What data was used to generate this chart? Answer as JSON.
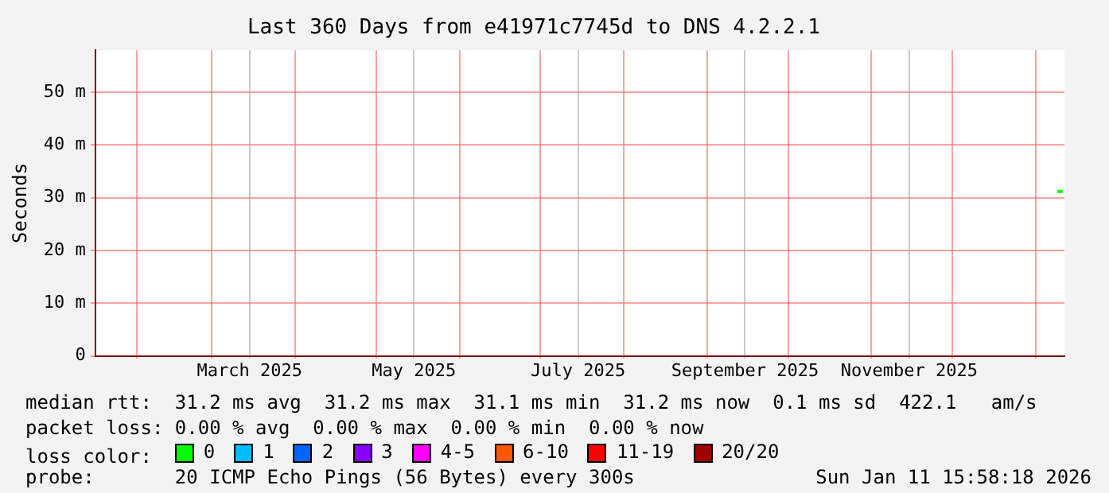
{
  "chart_data": {
    "type": "line",
    "title": "Last 360 Days from e41971c7745d to DNS 4.2.2.1",
    "ylabel": "Seconds",
    "xlim": [
      "2025-01-16T16:00",
      "2026-01-11T16:00"
    ],
    "xticks": [
      {
        "value": "2025-02-01",
        "label": null
      },
      {
        "value": "2025-03-01",
        "label": null
      },
      {
        "value": "2025-03-15",
        "label": "March 2025"
      },
      {
        "value": "2025-04-01",
        "label": null
      },
      {
        "value": "2025-05-01",
        "label": null
      },
      {
        "value": "2025-05-15",
        "label": "May 2025"
      },
      {
        "value": "2025-06-01",
        "label": null
      },
      {
        "value": "2025-07-01",
        "label": null
      },
      {
        "value": "2025-07-15",
        "label": "July 2025"
      },
      {
        "value": "2025-08-01",
        "label": null
      },
      {
        "value": "2025-09-01",
        "label": null
      },
      {
        "value": "2025-09-15",
        "label": "September 2025"
      },
      {
        "value": "2025-10-01",
        "label": null
      },
      {
        "value": "2025-11-01",
        "label": null
      },
      {
        "value": "2025-11-15",
        "label": "November 2025"
      },
      {
        "value": "2025-12-01",
        "label": null
      },
      {
        "value": "2026-01-01",
        "label": null
      }
    ],
    "ylim": [
      0,
      58
    ],
    "yticks": [
      0,
      {
        "value": 10,
        "label": "10 m"
      },
      {
        "value": 20,
        "label": "20 m"
      },
      {
        "value": 30,
        "label": "30 m"
      },
      {
        "value": 40,
        "label": "40 m"
      },
      {
        "value": 50,
        "label": "50 m"
      }
    ],
    "grid": true,
    "legend": "bottom",
    "marker": "none",
    "series": [
      {
        "name": "0",
        "color": "#00ff00",
        "x": [
          "2026-01-09",
          "2026-01-11"
        ],
        "values": [
          31.2,
          31.2
        ]
      },
      {
        "name": "1",
        "color": "#00bbff"
      },
      {
        "name": "2",
        "color": "#0066ff"
      },
      {
        "name": "3",
        "color": "#8800ff"
      },
      {
        "name": "4-5",
        "color": "#ff00ff"
      },
      {
        "name": "6-10",
        "color": "#ff5500"
      },
      {
        "name": "11-19",
        "color": "#ff0000"
      },
      {
        "name": "20/20",
        "color": "#a10000"
      }
    ],
    "annotations": [
      "median rtt:  31.2 ms avg  31.2 ms max  31.1 ms min  31.2 ms now  0.1 ms sd  422.1   am/s",
      "packet loss: 0.00 % avg  0.00 % max  0.00 % min  0.00 % now",
      "loss color:",
      "probe:       20 ICMP Echo Pings (56 Bytes) every 300s",
      "Sun Jan 11 15:58:18 2026"
    ]
  }
}
